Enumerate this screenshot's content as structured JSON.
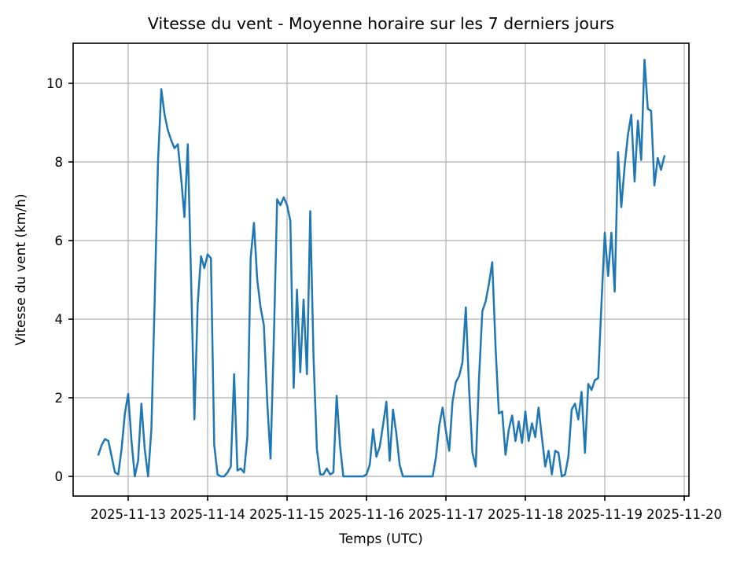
{
  "chart_data": {
    "type": "line",
    "title": "Vitesse du vent - Moyenne horaire sur les 7 derniers jours",
    "xlabel": "Temps (UTC)",
    "ylabel": "Vitesse du vent (km/h)",
    "x_tick_labels": [
      "2025-11-13",
      "2025-11-14",
      "2025-11-15",
      "2025-11-16",
      "2025-11-17",
      "2025-11-18",
      "2025-11-19",
      "2025-11-20"
    ],
    "y_ticks": [
      0,
      2,
      4,
      6,
      8,
      10
    ],
    "ylim": [
      -0.5,
      11.0
    ],
    "grid": true,
    "grid_color": "#b0b0b0",
    "line_color": "#1f77b4",
    "spine_color": "#000000",
    "series": [
      {
        "interval_hours": 1,
        "start_offset_days_from_first_tick": -0.375,
        "values": [
          0.55,
          0.8,
          0.95,
          0.9,
          0.5,
          0.1,
          0.05,
          0.7,
          1.6,
          2.1,
          0.9,
          0.0,
          0.4,
          1.85,
          0.7,
          0.0,
          1.2,
          4.5,
          8.0,
          9.85,
          9.2,
          8.8,
          8.55,
          8.35,
          8.45,
          7.6,
          6.6,
          8.45,
          5.0,
          1.45,
          4.4,
          5.6,
          5.3,
          5.65,
          5.55,
          0.8,
          0.05,
          0.0,
          0.0,
          0.1,
          0.25,
          2.6,
          0.15,
          0.2,
          0.1,
          1.0,
          5.55,
          6.45,
          5.0,
          4.3,
          3.85,
          1.9,
          0.45,
          3.5,
          7.05,
          6.9,
          7.1,
          6.9,
          6.5,
          2.25,
          4.75,
          2.65,
          4.5,
          2.6,
          6.75,
          3.0,
          0.7,
          0.05,
          0.05,
          0.2,
          0.05,
          0.1,
          2.05,
          0.8,
          0.0,
          0.0,
          0.0,
          0.0,
          0.0,
          0.0,
          0.0,
          0.05,
          0.3,
          1.2,
          0.5,
          0.75,
          1.3,
          1.9,
          0.4,
          1.7,
          1.1,
          0.3,
          0.0,
          0.0,
          0.0,
          0.0,
          0.0,
          0.0,
          0.0,
          0.0,
          0.0,
          0.0,
          0.5,
          1.3,
          1.75,
          1.15,
          0.65,
          1.9,
          2.4,
          2.55,
          2.9,
          4.3,
          2.2,
          0.6,
          0.25,
          2.5,
          4.2,
          4.45,
          4.9,
          5.45,
          3.3,
          1.6,
          1.65,
          0.55,
          1.2,
          1.55,
          0.9,
          1.4,
          0.85,
          1.65,
          0.9,
          1.35,
          1.0,
          1.75,
          1.0,
          0.25,
          0.65,
          0.05,
          0.65,
          0.6,
          0.0,
          0.05,
          0.5,
          1.7,
          1.85,
          1.45,
          2.15,
          0.6,
          2.35,
          2.2,
          2.45,
          2.5,
          4.4,
          6.2,
          5.1,
          6.2,
          4.7,
          8.25,
          6.85,
          7.9,
          8.7,
          9.2,
          7.5,
          9.05,
          8.05,
          10.6,
          9.35,
          9.3,
          7.4,
          8.1,
          7.8,
          8.15
        ]
      }
    ]
  }
}
